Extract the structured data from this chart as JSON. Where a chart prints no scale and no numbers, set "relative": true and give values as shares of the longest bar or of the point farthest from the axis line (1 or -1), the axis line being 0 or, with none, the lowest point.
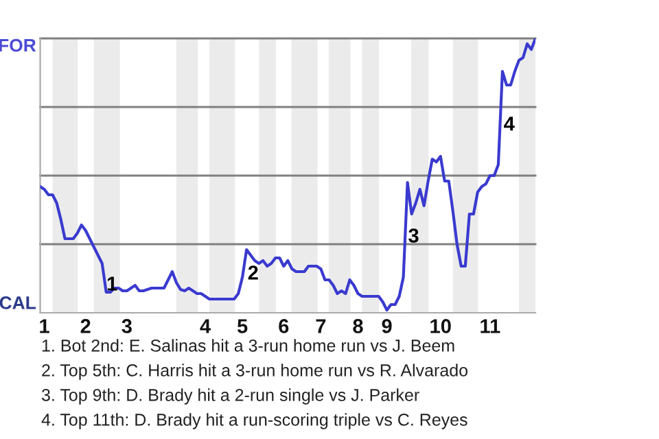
{
  "chart_data": {
    "type": "line",
    "relative": true,
    "categories": [
      null,
      "1",
      null,
      null,
      null,
      null,
      null,
      null,
      null,
      null,
      null,
      "2",
      null,
      null,
      null,
      null,
      null,
      null,
      null,
      null,
      null,
      "3",
      null,
      null,
      null,
      null,
      null,
      null,
      null,
      null,
      null,
      null,
      null,
      null,
      null,
      null,
      null,
      null,
      null,
      null,
      "4",
      null,
      null,
      null,
      null,
      null,
      null,
      null,
      null,
      "5",
      null,
      null,
      null,
      null,
      null,
      null,
      null,
      null,
      null,
      "6",
      null,
      null,
      null,
      null,
      null,
      null,
      null,
      null,
      "7",
      null,
      null,
      null,
      null,
      null,
      null,
      null,
      null,
      "8",
      null,
      null,
      null,
      null,
      null,
      null,
      "9",
      null,
      null,
      null,
      null,
      null,
      null,
      null,
      null,
      null,
      null,
      null,
      null,
      "10",
      null,
      null,
      null,
      null,
      null,
      null,
      null,
      null,
      null,
      null,
      null,
      "11",
      null,
      null,
      null,
      null,
      null,
      null,
      null,
      null,
      null,
      null,
      null
    ],
    "series": [
      {
        "color": "#3a3ad0",
        "values": [
          0.46,
          0.45,
          0.43,
          0.43,
          0.4,
          0.34,
          0.27,
          0.27,
          0.27,
          0.29,
          0.32,
          0.3,
          0.27,
          0.24,
          0.21,
          0.18,
          0.075,
          0.075,
          0.09,
          0.09,
          0.08,
          0.08,
          0.09,
          0.1,
          0.08,
          0.08,
          0.085,
          0.09,
          0.09,
          0.09,
          0.09,
          0.12,
          0.15,
          0.11,
          0.085,
          0.08,
          0.09,
          0.08,
          0.07,
          0.07,
          0.06,
          0.05,
          0.05,
          0.05,
          0.05,
          0.05,
          0.05,
          0.05,
          0.07,
          0.13,
          0.23,
          0.21,
          0.19,
          0.18,
          0.19,
          0.17,
          0.18,
          0.2,
          0.2,
          0.17,
          0.19,
          0.16,
          0.15,
          0.15,
          0.15,
          0.17,
          0.17,
          0.17,
          0.16,
          0.12,
          0.12,
          0.1,
          0.07,
          0.08,
          0.07,
          0.12,
          0.1,
          0.07,
          0.06,
          0.06,
          0.06,
          0.06,
          0.06,
          0.04,
          0.01,
          0.03,
          0.03,
          0.06,
          0.13,
          0.475,
          0.36,
          0.4,
          0.45,
          0.39,
          0.48,
          0.56,
          0.55,
          0.57,
          0.48,
          0.48,
          0.37,
          0.25,
          0.17,
          0.17,
          0.36,
          0.36,
          0.44,
          0.46,
          0.47,
          0.5,
          0.5,
          0.54,
          0.88,
          0.83,
          0.83,
          0.88,
          0.92,
          0.93,
          0.98,
          0.96,
          1.0
        ],
        "name": null
      }
    ],
    "legend": false,
    "marker": "none",
    "line_style": "solid",
    "ref_lines": [
      {
        "axis": "y",
        "value": 0.25,
        "color": "#808080"
      },
      {
        "axis": "y",
        "value": 0.5,
        "color": "#808080"
      },
      {
        "axis": "y",
        "value": 0.75,
        "color": "#808080"
      },
      {
        "axis": "y",
        "value": 1,
        "color": "#808080"
      }
    ],
    "annotations": [
      "FOR",
      "CAL",
      "1",
      "2",
      "3",
      "4",
      "1. Bot 2nd: E. Salinas hit a 3-run home run vs J. Beem",
      "2. Top 5th: C. Harris hit a 3-run home run vs R. Alvarado",
      "3. Top 9th: D. Brady hit a 2-run single vs J. Parker",
      "4. Top 11th: D. Brady hit a run-scoring triple vs C. Reyes"
    ]
  }
}
